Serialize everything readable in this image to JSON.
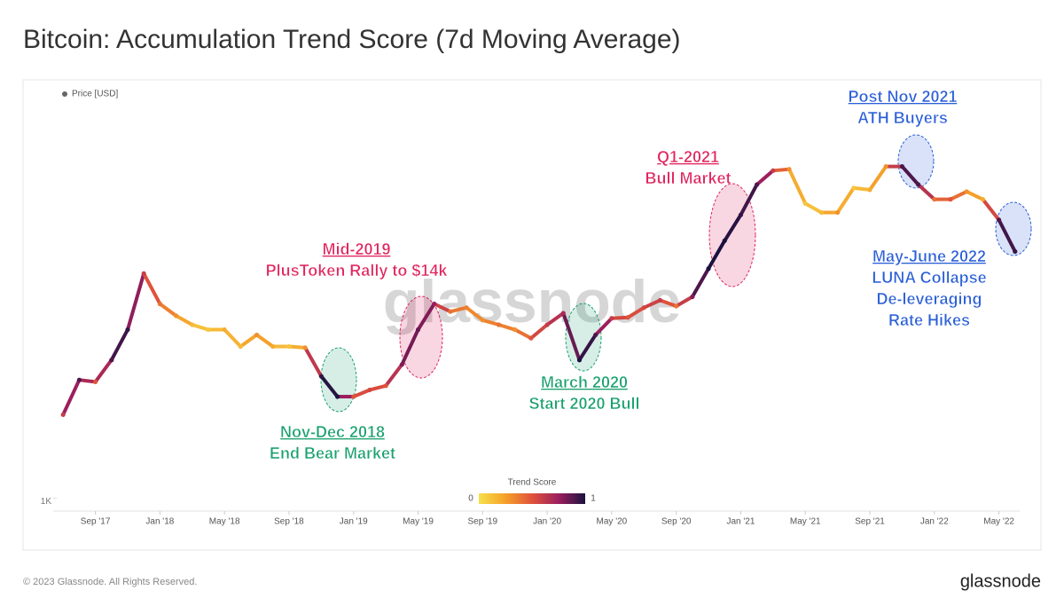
{
  "chart_data": {
    "type": "line",
    "title": "Bitcoin: Accumulation Trend Score (7d Moving Average)",
    "log_scale": true,
    "x": [
      "2017-07",
      "2017-08",
      "2017-09",
      "2017-10",
      "2017-11",
      "2017-12",
      "2018-01",
      "2018-02",
      "2018-03",
      "2018-04",
      "2018-05",
      "2018-06",
      "2018-07",
      "2018-08",
      "2018-09",
      "2018-10",
      "2018-11",
      "2018-12",
      "2019-01",
      "2019-02",
      "2019-03",
      "2019-04",
      "2019-05",
      "2019-06",
      "2019-07",
      "2019-08",
      "2019-09",
      "2019-10",
      "2019-11",
      "2019-12",
      "2020-01",
      "2020-02",
      "2020-03",
      "2020-04",
      "2020-05",
      "2020-06",
      "2020-07",
      "2020-08",
      "2020-09",
      "2020-10",
      "2020-11",
      "2020-12",
      "2021-01",
      "2021-02",
      "2021-03",
      "2021-04",
      "2021-05",
      "2021-06",
      "2021-07",
      "2021-08",
      "2021-09",
      "2021-10",
      "2021-11",
      "2021-12",
      "2022-01",
      "2022-02",
      "2022-03",
      "2022-04",
      "2022-05",
      "2022-06"
    ],
    "series": [
      {
        "name": "Price [USD]",
        "color": "#666666",
        "values": [
          2800,
          4300,
          4200,
          5500,
          8000,
          16000,
          11000,
          9500,
          8500,
          8000,
          8000,
          6500,
          7500,
          6500,
          6500,
          6400,
          4500,
          3500,
          3500,
          3800,
          4000,
          5200,
          8000,
          11000,
          10000,
          10500,
          9000,
          8500,
          8000,
          7200,
          8500,
          9800,
          5500,
          7500,
          9200,
          9300,
          10500,
          11500,
          10700,
          12000,
          17000,
          24000,
          33000,
          48000,
          57000,
          58000,
          38000,
          34000,
          34000,
          46000,
          45000,
          60000,
          60000,
          48000,
          40000,
          40000,
          44000,
          40000,
          31000,
          21000
        ],
        "trend_score": [
          0.6,
          0.9,
          0.5,
          0.9,
          0.95,
          0.6,
          0.4,
          0.3,
          0.15,
          0.1,
          0.2,
          0.15,
          0.3,
          0.2,
          0.1,
          0.3,
          0.95,
          1,
          0.5,
          0.55,
          0.5,
          0.8,
          0.85,
          0.75,
          0.4,
          0.35,
          0.3,
          0.4,
          0.3,
          0.5,
          0.6,
          0.7,
          1,
          0.9,
          0.6,
          0.5,
          0.55,
          0.6,
          0.4,
          0.8,
          1,
          1,
          0.95,
          0.9,
          0.6,
          0.3,
          0.1,
          0.15,
          0.3,
          0.1,
          0.2,
          0.3,
          0.9,
          0.9,
          0.4,
          0.5,
          0.3,
          0.2,
          0.9,
          0.95
        ]
      }
    ],
    "xlim": [
      "2017-06",
      "2022-07"
    ],
    "xticks": [
      {
        "value": "2017-09",
        "label": "Sep '17"
      },
      {
        "value": "2018-01",
        "label": "Jan '18"
      },
      {
        "value": "2018-05",
        "label": "May '18"
      },
      {
        "value": "2018-09",
        "label": "Sep '18"
      },
      {
        "value": "2019-01",
        "label": "Jan '19"
      },
      {
        "value": "2019-05",
        "label": "May '19"
      },
      {
        "value": "2019-09",
        "label": "Sep '19"
      },
      {
        "value": "2020-01",
        "label": "Jan '20"
      },
      {
        "value": "2020-05",
        "label": "May '20"
      },
      {
        "value": "2020-09",
        "label": "Sep '20"
      },
      {
        "value": "2021-01",
        "label": "Jan '21"
      },
      {
        "value": "2021-05",
        "label": "May '21"
      },
      {
        "value": "2021-09",
        "label": "Sep '21"
      },
      {
        "value": "2022-01",
        "label": "Jan '22"
      },
      {
        "value": "2022-05",
        "label": "May '22"
      }
    ],
    "ylim": [
      950,
      150000
    ],
    "yticks": [
      {
        "value": 1000,
        "label": "1K"
      }
    ],
    "colorbar": {
      "title": "Trend Score",
      "ticks": [
        0,
        1
      ],
      "colors": [
        "#f7e04b",
        "#f5a02a",
        "#e0523a",
        "#9c1f5e",
        "#1a1240"
      ]
    },
    "annotations": [
      {
        "lines": [
          "Mid-2019",
          "PlusToken Rally to $14k"
        ],
        "color": "#e0245e"
      },
      {
        "lines": [
          "Nov-Dec 2018",
          "End Bear Market"
        ],
        "color": "#19a06e"
      },
      {
        "lines": [
          "March 2020",
          "Start 2020 Bull"
        ],
        "color": "#19a06e"
      },
      {
        "lines": [
          "Q1-2021",
          "Bull Market"
        ],
        "color": "#e0245e"
      },
      {
        "lines": [
          "Post Nov 2021",
          "ATH Buyers"
        ],
        "color": "#2a5fd6"
      },
      {
        "lines": [
          "May-June 2022",
          "LUNA Collapse",
          "De-leveraging",
          "Rate Hikes"
        ],
        "color": "#2a5fd6"
      }
    ],
    "watermark": "glassnode",
    "footer": "© 2023 Glassnode. All Rights Reserved.",
    "logo": "glassnode"
  }
}
